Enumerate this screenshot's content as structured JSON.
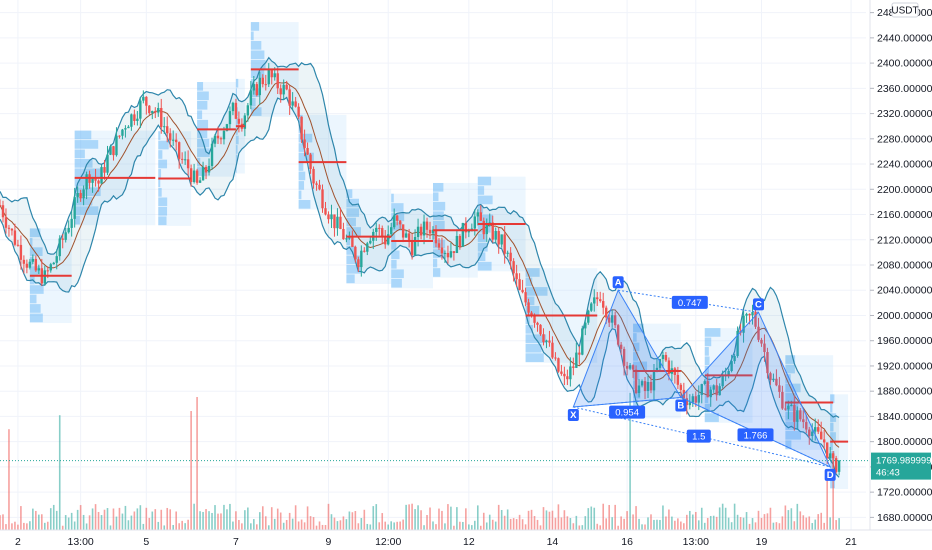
{
  "chart_data": {
    "type": "candlestick",
    "currency": "USDT",
    "ylim": [
      1660,
      2500
    ],
    "y_ticks": [
      1680,
      1720,
      1760,
      1800,
      1840,
      1880,
      1920,
      1960,
      2000,
      2040,
      2080,
      2120,
      2160,
      2200,
      2240,
      2280,
      2320,
      2360,
      2400,
      2440,
      2480
    ],
    "y_tick_labels": [
      "1680.000000",
      "1720.000000",
      "1760.000000",
      "1800.000000",
      "1840.000000",
      "1880.000000",
      "1920.000000",
      "1960.000000",
      "2000.000000",
      "2040.000000",
      "2080.000000",
      "2120.000000",
      "2160.000000",
      "2200.000000",
      "2240.000000",
      "2280.000000",
      "2320.000000",
      "2360.000000",
      "2400.000000",
      "2440.000000",
      "2480.000000"
    ],
    "x_range": [
      0,
      290
    ],
    "x_ticks": [
      {
        "label": "2",
        "x": 6
      },
      {
        "label": "13:00",
        "x": 27
      },
      {
        "label": "5",
        "x": 49
      },
      {
        "label": "7",
        "x": 79
      },
      {
        "label": "9",
        "x": 110
      },
      {
        "label": "12:00",
        "x": 130
      },
      {
        "label": "12",
        "x": 157
      },
      {
        "label": "14",
        "x": 185
      },
      {
        "label": "16",
        "x": 210
      },
      {
        "label": "13:00",
        "x": 233
      },
      {
        "label": "19",
        "x": 255
      },
      {
        "label": "21",
        "x": 285
      }
    ],
    "price_path": [
      [
        0,
        2175
      ],
      [
        3,
        2140
      ],
      [
        6,
        2110
      ],
      [
        9,
        2085
      ],
      [
        12,
        2070
      ],
      [
        15,
        2060
      ],
      [
        18,
        2085
      ],
      [
        21,
        2120
      ],
      [
        24,
        2160
      ],
      [
        27,
        2200
      ],
      [
        30,
        2225
      ],
      [
        33,
        2210
      ],
      [
        36,
        2250
      ],
      [
        39,
        2275
      ],
      [
        42,
        2305
      ],
      [
        45,
        2320
      ],
      [
        48,
        2340
      ],
      [
        51,
        2330
      ],
      [
        54,
        2310
      ],
      [
        57,
        2280
      ],
      [
        60,
        2250
      ],
      [
        63,
        2235
      ],
      [
        66,
        2205
      ],
      [
        69,
        2230
      ],
      [
        72,
        2275
      ],
      [
        75,
        2300
      ],
      [
        78,
        2325
      ],
      [
        81,
        2310
      ],
      [
        84,
        2345
      ],
      [
        87,
        2370
      ],
      [
        90,
        2380
      ],
      [
        93,
        2365
      ],
      [
        96,
        2355
      ],
      [
        99,
        2320
      ],
      [
        102,
        2270
      ],
      [
        105,
        2215
      ],
      [
        108,
        2185
      ],
      [
        111,
        2155
      ],
      [
        114,
        2135
      ],
      [
        117,
        2110
      ],
      [
        120,
        2090
      ],
      [
        123,
        2125
      ],
      [
        126,
        2140
      ],
      [
        129,
        2120
      ],
      [
        132,
        2150
      ],
      [
        135,
        2130
      ],
      [
        138,
        2110
      ],
      [
        141,
        2135
      ],
      [
        144,
        2140
      ],
      [
        147,
        2120
      ],
      [
        150,
        2100
      ],
      [
        153,
        2115
      ],
      [
        156,
        2140
      ],
      [
        159,
        2155
      ],
      [
        162,
        2140
      ],
      [
        165,
        2130
      ],
      [
        168,
        2115
      ],
      [
        171,
        2080
      ],
      [
        174,
        2035
      ],
      [
        177,
        2015
      ],
      [
        180,
        1990
      ],
      [
        183,
        1960
      ],
      [
        186,
        1920
      ],
      [
        189,
        1895
      ],
      [
        192,
        1920
      ],
      [
        195,
        1965
      ],
      [
        198,
        2010
      ],
      [
        201,
        2035
      ],
      [
        204,
        2000
      ],
      [
        207,
        1965
      ],
      [
        210,
        1920
      ],
      [
        213,
        1890
      ],
      [
        216,
        1880
      ],
      [
        219,
        1900
      ],
      [
        222,
        1935
      ],
      [
        225,
        1910
      ],
      [
        228,
        1880
      ],
      [
        231,
        1865
      ],
      [
        234,
        1875
      ],
      [
        237,
        1885
      ],
      [
        240,
        1880
      ],
      [
        243,
        1905
      ],
      [
        246,
        1950
      ],
      [
        249,
        1985
      ],
      [
        252,
        2000
      ],
      [
        255,
        1960
      ],
      [
        258,
        1905
      ],
      [
        261,
        1875
      ],
      [
        264,
        1850
      ],
      [
        267,
        1840
      ],
      [
        270,
        1830
      ],
      [
        273,
        1810
      ],
      [
        276,
        1800
      ],
      [
        279,
        1760
      ],
      [
        281,
        1770
      ]
    ],
    "volume_spikes": [
      [
        3,
        0.72
      ],
      [
        20,
        0.82
      ],
      [
        64,
        0.85
      ],
      [
        66,
        0.95
      ],
      [
        211,
        0.98
      ],
      [
        277,
        0.42
      ],
      [
        279,
        0.55
      ]
    ],
    "current_price": {
      "value": 1769.989999,
      "label": "1769.989999",
      "countdown": "46:43",
      "color": "#26a69a"
    },
    "harmonic_pattern": {
      "points": [
        {
          "label": "X",
          "x": 192,
          "y": 1855
        },
        {
          "label": "A",
          "x": 207,
          "y": 2040
        },
        {
          "label": "B",
          "x": 228,
          "y": 1870
        },
        {
          "label": "C",
          "x": 254,
          "y": 2005
        },
        {
          "label": "D",
          "x": 278,
          "y": 1760
        }
      ],
      "ratios": [
        {
          "label": "0.747",
          "x": 231,
          "y": 2020
        },
        {
          "label": "0.954",
          "x": 210,
          "y": 1846
        },
        {
          "label": "1.5",
          "x": 234,
          "y": 1808
        },
        {
          "label": "1.766",
          "x": 253,
          "y": 1810
        }
      ]
    },
    "horizontal_levels": [
      {
        "x1": 10,
        "x2": 24,
        "y": 2063
      },
      {
        "x1": 25,
        "x2": 52,
        "y": 2218
      },
      {
        "x1": 53,
        "x2": 64,
        "y": 2217
      },
      {
        "x1": 66,
        "x2": 79,
        "y": 2295
      },
      {
        "x1": 79,
        "x2": 82,
        "y": 2300
      },
      {
        "x1": 84,
        "x2": 100,
        "y": 2390
      },
      {
        "x1": 100,
        "x2": 116,
        "y": 2243
      },
      {
        "x1": 116,
        "x2": 131,
        "y": 2125
      },
      {
        "x1": 131,
        "x2": 145,
        "y": 2118
      },
      {
        "x1": 145,
        "x2": 160,
        "y": 2135
      },
      {
        "x1": 160,
        "x2": 176,
        "y": 2145
      },
      {
        "x1": 176,
        "x2": 200,
        "y": 2000
      },
      {
        "x1": 212,
        "x2": 228,
        "y": 1912
      },
      {
        "x1": 236,
        "x2": 252,
        "y": 1905
      },
      {
        "x1": 263,
        "x2": 279,
        "y": 1862
      },
      {
        "x1": 278,
        "x2": 284,
        "y": 1800
      }
    ],
    "colors": {
      "up": "#26a69a",
      "down": "#ef5350",
      "band": "#2e86ab",
      "ma": "#a0522d",
      "pattern": "#3b82f6",
      "label_bg": "#2962ff"
    }
  }
}
